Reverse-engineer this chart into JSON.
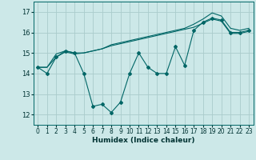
{
  "title": "",
  "xlabel": "Humidex (Indice chaleur)",
  "bg_color": "#cce8e8",
  "grid_color": "#aacccc",
  "line_color": "#006666",
  "xlim": [
    -0.5,
    23.5
  ],
  "ylim": [
    11.5,
    17.5
  ],
  "yticks": [
    12,
    13,
    14,
    15,
    16,
    17
  ],
  "xticks": [
    0,
    1,
    2,
    3,
    4,
    5,
    6,
    7,
    8,
    9,
    10,
    11,
    12,
    13,
    14,
    15,
    16,
    17,
    18,
    19,
    20,
    21,
    22,
    23
  ],
  "series0": [
    14.3,
    14.0,
    14.8,
    15.1,
    15.0,
    14.0,
    12.4,
    12.5,
    12.1,
    12.6,
    14.0,
    15.0,
    14.3,
    14.0,
    14.0,
    15.3,
    14.4,
    16.1,
    16.5,
    16.7,
    16.6,
    16.0,
    16.0,
    16.1
  ],
  "series1": [
    14.3,
    14.3,
    14.8,
    15.05,
    14.95,
    15.0,
    15.1,
    15.2,
    15.35,
    15.45,
    15.55,
    15.65,
    15.75,
    15.85,
    15.95,
    16.05,
    16.15,
    16.25,
    16.45,
    16.65,
    16.55,
    15.95,
    15.95,
    16.05
  ],
  "series2": [
    14.3,
    14.3,
    14.95,
    15.1,
    15.0,
    15.0,
    15.1,
    15.2,
    15.4,
    15.5,
    15.6,
    15.7,
    15.8,
    15.9,
    16.0,
    16.1,
    16.2,
    16.4,
    16.65,
    16.95,
    16.8,
    16.2,
    16.1,
    16.2
  ],
  "tick_fontsize": 5.5,
  "xlabel_fontsize": 6.5
}
